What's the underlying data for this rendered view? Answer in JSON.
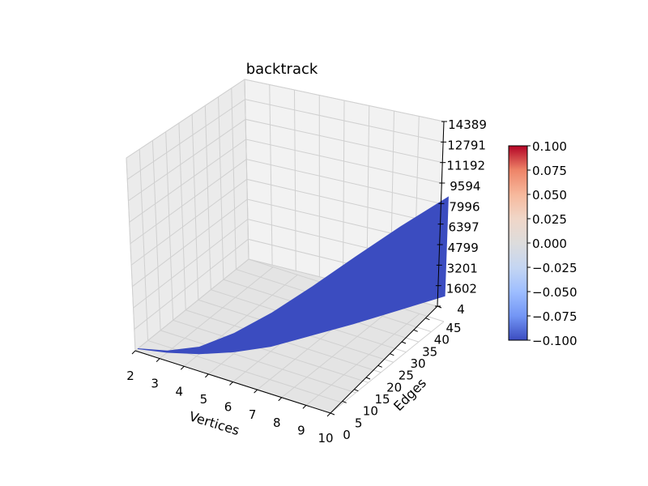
{
  "chart_data": {
    "type": "surface3d",
    "title": "backtrack",
    "xlabel": "Vertices",
    "ylabel": "Edges",
    "zlabel": "",
    "x_ticks": [
      "2",
      "3",
      "4",
      "5",
      "6",
      "7",
      "8",
      "9",
      "10"
    ],
    "y_ticks": [
      "0",
      "5",
      "10",
      "15",
      "20",
      "25",
      "30",
      "35",
      "40",
      "45"
    ],
    "z_ticks": [
      "4",
      "1602",
      "3201",
      "4799",
      "6397",
      "7996",
      "9594",
      "11192",
      "12791",
      "14389"
    ],
    "xlim": [
      2,
      10
    ],
    "ylim": [
      0,
      45
    ],
    "zlim": [
      4,
      14389
    ],
    "grid": true,
    "surface": {
      "color": "#3b4cc0",
      "boundary": [
        {
          "x": 2,
          "y": 1,
          "z": 4
        },
        {
          "x": 3,
          "y": 3,
          "z": 8
        },
        {
          "x": 4,
          "y": 6,
          "z": 30
        },
        {
          "x": 5,
          "y": 10,
          "z": 150
        },
        {
          "x": 6,
          "y": 15,
          "z": 400
        },
        {
          "x": 7,
          "y": 21,
          "z": 900
        },
        {
          "x": 8,
          "y": 28,
          "z": 1300
        },
        {
          "x": 9,
          "y": 36,
          "z": 1700
        },
        {
          "x": 10,
          "y": 45,
          "z": 2000
        },
        {
          "x": 10,
          "y": 45,
          "z": 9700
        },
        {
          "x": 9,
          "y": 36,
          "z": 8200
        },
        {
          "x": 8,
          "y": 28,
          "z": 6500
        },
        {
          "x": 7,
          "y": 21,
          "z": 4700
        },
        {
          "x": 6,
          "y": 15,
          "z": 3000
        },
        {
          "x": 5,
          "y": 10,
          "z": 1600
        },
        {
          "x": 4,
          "y": 6,
          "z": 550
        },
        {
          "x": 3,
          "y": 3,
          "z": 120
        }
      ]
    },
    "colorbar": {
      "ticks": [
        "0.100",
        "0.075",
        "0.050",
        "0.025",
        "0.000",
        "−0.025",
        "−0.050",
        "−0.075",
        "−0.100"
      ],
      "range": [
        -0.1,
        0.1
      ],
      "colormap": [
        "#b40426",
        "#ee8468",
        "#f7b89c",
        "#f0d6c8",
        "#dddcdc",
        "#c5d6f2",
        "#9ebeff",
        "#7396f5",
        "#3b4cc0"
      ]
    }
  }
}
